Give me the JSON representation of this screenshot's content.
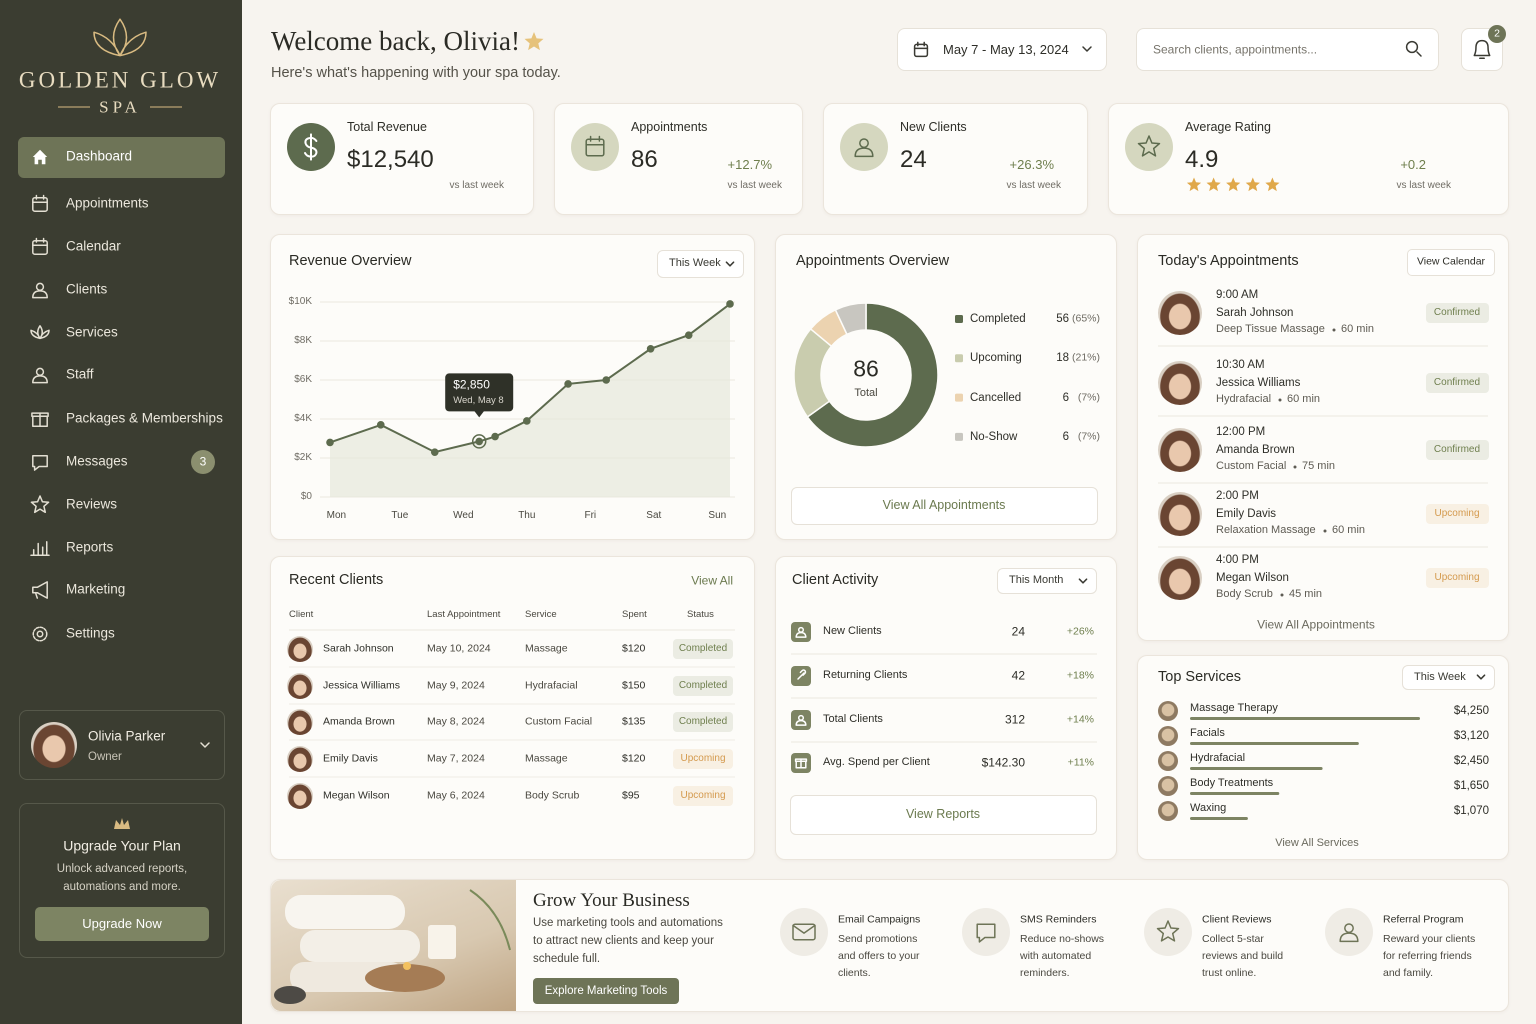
{
  "brand": {
    "name": "GOLDEN GLOW",
    "tagline": "SPA"
  },
  "nav": [
    {
      "label": "Dashboard",
      "active": true
    },
    {
      "label": "Appointments"
    },
    {
      "label": "Calendar"
    },
    {
      "label": "Clients"
    },
    {
      "label": "Services"
    },
    {
      "label": "Staff"
    },
    {
      "label": "Packages & Memberships"
    },
    {
      "label": "Messages",
      "badge": 3
    },
    {
      "label": "Reviews"
    },
    {
      "label": "Reports"
    },
    {
      "label": "Marketing"
    },
    {
      "label": "Settings"
    }
  ],
  "profile": {
    "name": "Olivia Parker",
    "role": "Owner"
  },
  "upgrade": {
    "title": "Upgrade Your Plan",
    "text": "Unlock advanced reports, automations and more.",
    "button": "Upgrade Now"
  },
  "header": {
    "title": "Welcome back, Olivia!",
    "subtitle": "Here's what's happening with your spa today.",
    "date_range": "May 7 - May 13, 2024",
    "search_placeholder": "Search clients, appointments...",
    "notifications": 2
  },
  "kpis": [
    {
      "label": "Total Revenue",
      "value": "$12,540",
      "note": "vs last week"
    },
    {
      "label": "Appointments",
      "value": 86,
      "change": "+12.7%",
      "note": "vs last week"
    },
    {
      "label": "New Clients",
      "value": 24,
      "change": "+26.3%",
      "note": "vs last week"
    },
    {
      "label": "Average Rating",
      "value": 4.9,
      "change": "+0.2",
      "note": "vs last week"
    }
  ],
  "status_colors": {
    "Completed": "#6f7f4e",
    "Confirmed": "#6f7f4e",
    "Upcoming": "#d49a4e"
  },
  "revenue_overview": {
    "title": "Revenue Overview",
    "filter": "This Week",
    "chart": {
      "type": "line",
      "color": "#5d6b4e",
      "x": [
        -0.1,
        0.7,
        1.55,
        2.25,
        2.5,
        3.0,
        3.65,
        4.25,
        4.95,
        5.55,
        6.2
      ],
      "values": [
        2.8,
        3.7,
        2.3,
        2.85,
        3.1,
        3.9,
        5.8,
        6.0,
        7.6,
        8.3,
        9.9
      ],
      "value_labels": [
        null,
        null,
        null,
        "$2,850",
        null,
        null,
        null,
        null,
        null,
        null,
        null
      ],
      "tooltip_label": "Wed, May 8",
      "xlim": [
        -0.1,
        6.2
      ],
      "xticks": [
        {
          "value": 0,
          "label": "Mon"
        },
        {
          "value": 1,
          "label": "Tue"
        },
        {
          "value": 2,
          "label": "Wed"
        },
        {
          "value": 3,
          "label": "Thu"
        },
        {
          "value": 4,
          "label": "Fri"
        },
        {
          "value": 5,
          "label": "Sat"
        },
        {
          "value": 6,
          "label": "Sun"
        }
      ],
      "ylim": [
        0,
        10
      ],
      "yticks": [
        {
          "value": 0,
          "label": "$0"
        },
        {
          "value": 2,
          "label": "$2K"
        },
        {
          "value": 4,
          "label": "$4K"
        },
        {
          "value": 6,
          "label": "$6K"
        },
        {
          "value": 8,
          "label": "$8K"
        },
        {
          "value": 10,
          "label": "$10K"
        }
      ],
      "grid": true
    }
  },
  "appointments_overview": {
    "title": "Appointments Overview",
    "chart": {
      "type": "donut",
      "categories": [
        "Completed",
        "Upcoming",
        "Cancelled",
        "No-Show"
      ],
      "values": [
        56,
        18,
        6,
        6
      ],
      "percent_labels": [
        "(65%)",
        "(21%)",
        "(7%)",
        "(7%)"
      ],
      "colors": [
        "#5d6b4e",
        "#c9ccae",
        "#ecd3b0",
        "#c8c6c0"
      ],
      "total": 86,
      "total_label": "Total"
    },
    "button": "View All Appointments"
  },
  "todays_appointments": {
    "title": "Today's Appointments",
    "button": "View Calendar",
    "items": [
      {
        "time": "9:00 AM",
        "client": "Sarah Johnson",
        "service": "Deep Tissue Massage",
        "duration": "60 min",
        "status": "Confirmed"
      },
      {
        "time": "10:30 AM",
        "client": "Jessica Williams",
        "service": "Hydrafacial",
        "duration": "60 min",
        "status": "Confirmed"
      },
      {
        "time": "12:00 PM",
        "client": "Amanda Brown",
        "service": "Custom Facial",
        "duration": "75 min",
        "status": "Confirmed"
      },
      {
        "time": "2:00 PM",
        "client": "Emily Davis",
        "service": "Relaxation Massage",
        "duration": "60 min",
        "status": "Upcoming"
      },
      {
        "time": "4:00 PM",
        "client": "Megan Wilson",
        "service": "Body Scrub",
        "duration": "45 min",
        "status": "Upcoming"
      }
    ],
    "footer": "View All Appointments"
  },
  "recent_clients": {
    "title": "Recent Clients",
    "link": "View All",
    "columns": [
      "Client",
      "Last Appointment",
      "Service",
      "Spent",
      "Status"
    ],
    "rows": [
      [
        "Sarah Johnson",
        "May 10, 2024",
        "Massage",
        "$120",
        "Completed"
      ],
      [
        "Jessica Williams",
        "May 9, 2024",
        "Hydrafacial",
        "$150",
        "Completed"
      ],
      [
        "Amanda Brown",
        "May 8, 2024",
        "Custom Facial",
        "$135",
        "Completed"
      ],
      [
        "Emily Davis",
        "May 7, 2024",
        "Massage",
        "$120",
        "Upcoming"
      ],
      [
        "Megan Wilson",
        "May 6, 2024",
        "Body Scrub",
        "$95",
        "Upcoming"
      ]
    ]
  },
  "client_activity": {
    "title": "Client Activity",
    "filter": "This Month",
    "rows": [
      {
        "label": "New Clients",
        "value": 24,
        "change": "+26%"
      },
      {
        "label": "Returning Clients",
        "value": 42,
        "change": "+18%"
      },
      {
        "label": "Total Clients",
        "value": 312,
        "change": "+14%"
      },
      {
        "label": "Avg. Spend per Client",
        "value": "$142.30",
        "change": "+11%"
      }
    ],
    "button": "View Reports"
  },
  "top_services": {
    "title": "Top Services",
    "filter": "This Week",
    "chart": {
      "type": "bar",
      "orientation": "horizontal",
      "color": "#7d8463",
      "categories": [
        "Massage Therapy",
        "Facials",
        "Hydrafacial",
        "Body Treatments",
        "Waxing"
      ],
      "values": [
        4250,
        3120,
        2450,
        1650,
        1070
      ],
      "value_labels": [
        "$4,250",
        "$3,120",
        "$2,450",
        "$1,650",
        "$1,070"
      ]
    },
    "footer": "View All Services"
  },
  "marketing": {
    "title": "Grow Your Business",
    "text": "Use marketing tools and automations to attract new clients and keep your schedule full.",
    "button": "Explore Marketing Tools",
    "features": [
      {
        "title": "Email Campaigns",
        "text": "Send promotions and offers to your clients."
      },
      {
        "title": "SMS Reminders",
        "text": "Reduce no-shows with automated reminders."
      },
      {
        "title": "Client Reviews",
        "text": "Collect 5-star reviews and build trust online."
      },
      {
        "title": "Referral Program",
        "text": "Reward your clients for referring friends and family."
      }
    ]
  }
}
